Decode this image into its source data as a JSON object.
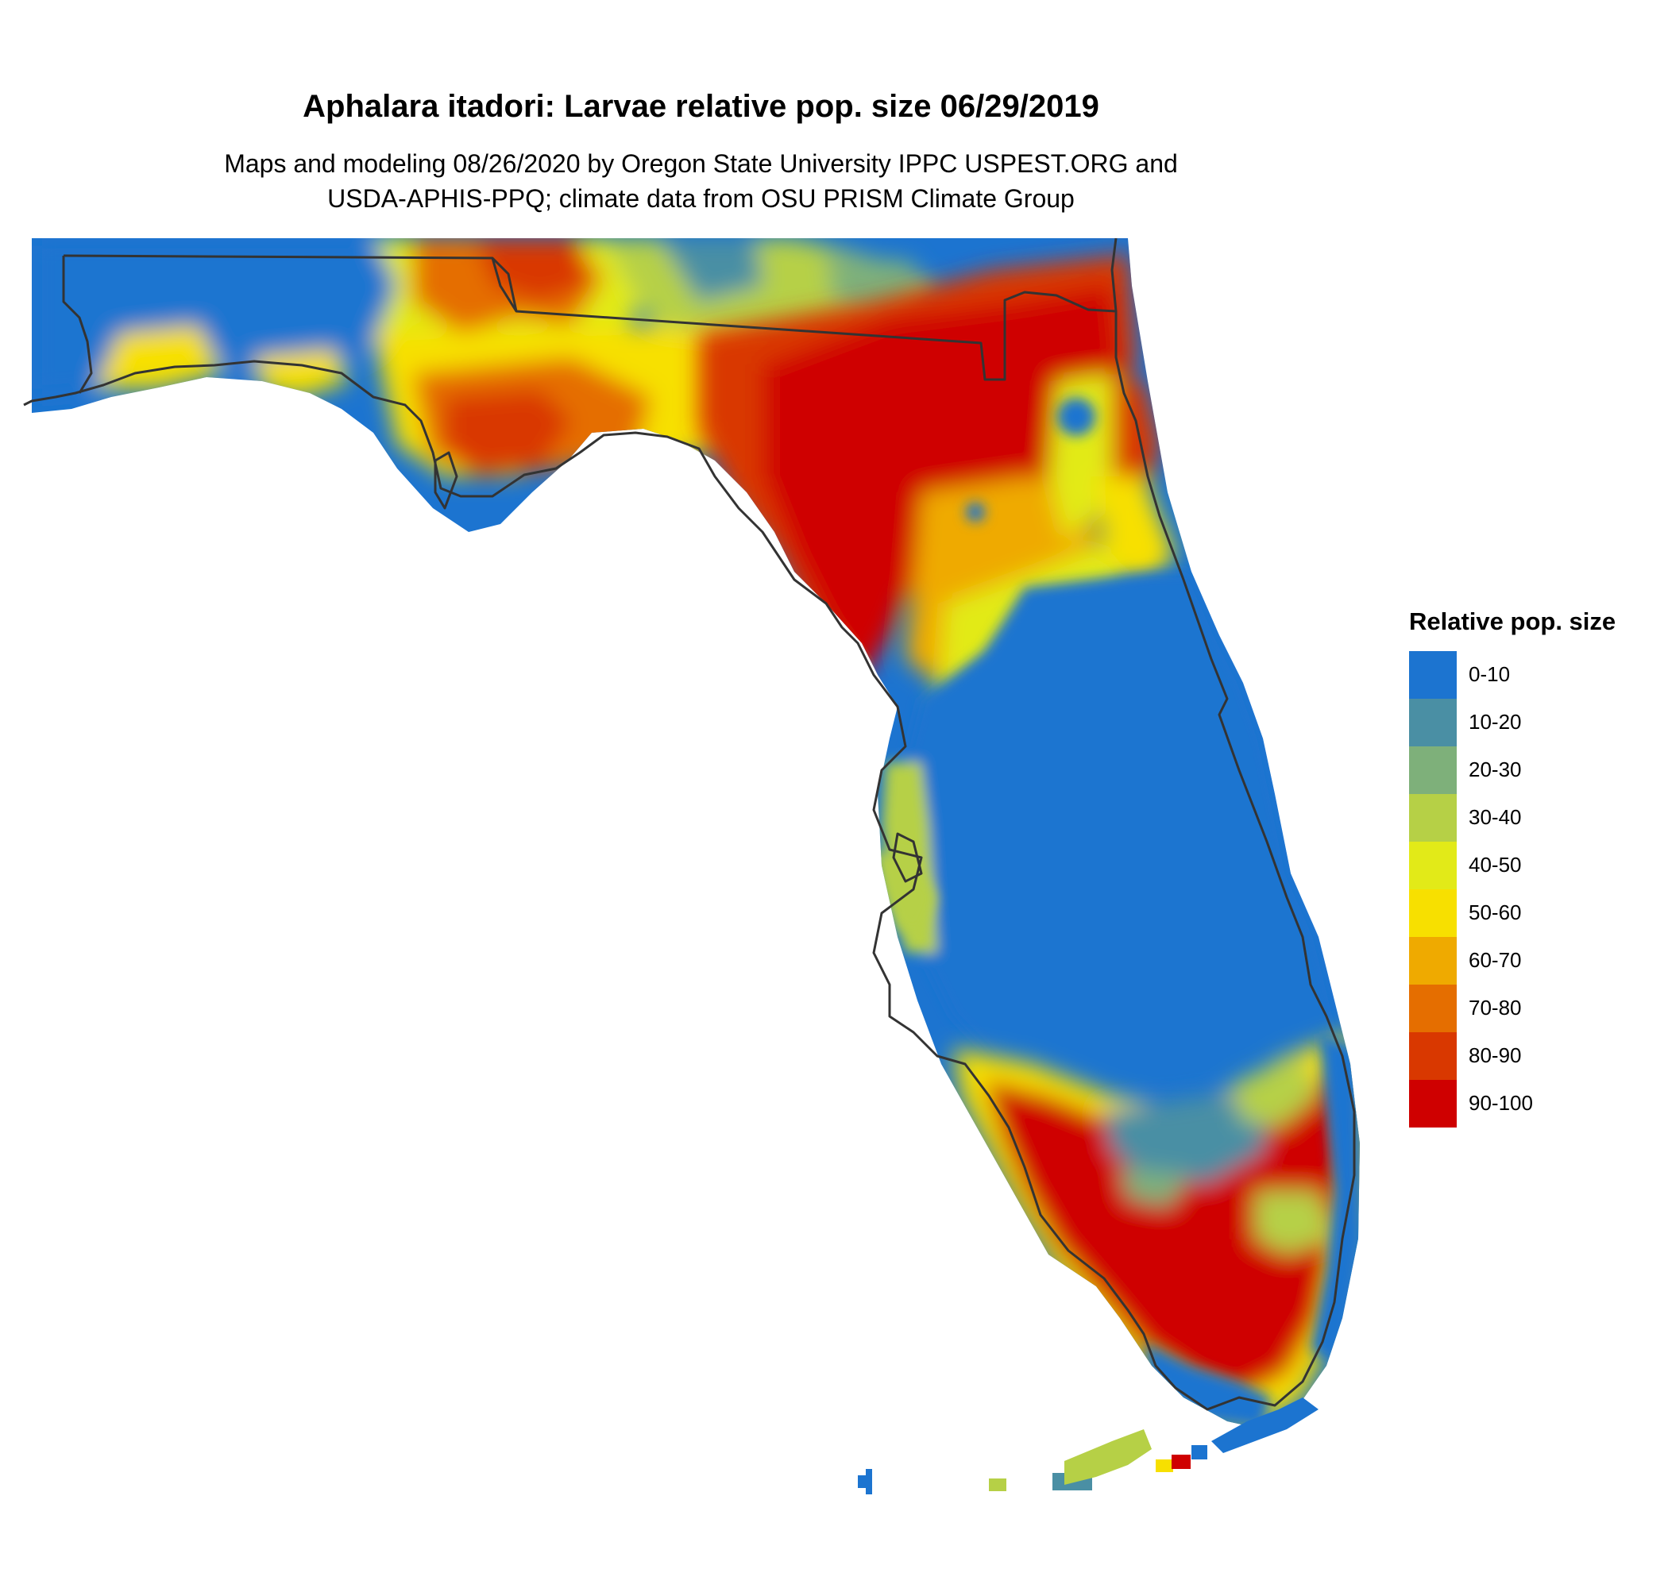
{
  "title": "Aphalara itadori: Larvae relative pop. size 06/29/2019",
  "subtitle": [
    "Maps and modeling 08/26/2020 by Oregon State University IPPC USPEST.ORG and",
    "USDA-APHIS-PPQ; climate data from OSU PRISM Climate Group"
  ],
  "legend": {
    "title": "Relative pop. size",
    "items": [
      {
        "label": "0-10",
        "color": "#1c74d0"
      },
      {
        "label": "10-20",
        "color": "#4a8fa4"
      },
      {
        "label": "20-30",
        "color": "#7eb07a"
      },
      {
        "label": "30-40",
        "color": "#b6d046"
      },
      {
        "label": "40-50",
        "color": "#e2ea18"
      },
      {
        "label": "50-60",
        "color": "#f7e000"
      },
      {
        "label": "60-70",
        "color": "#efaa00"
      },
      {
        "label": "70-80",
        "color": "#e56e00"
      },
      {
        "label": "80-90",
        "color": "#d93800"
      },
      {
        "label": "90-100",
        "color": "#cf0000"
      }
    ]
  },
  "map": {
    "region": "Florida",
    "background": "#ffffff",
    "outline_color": "#333333"
  }
}
